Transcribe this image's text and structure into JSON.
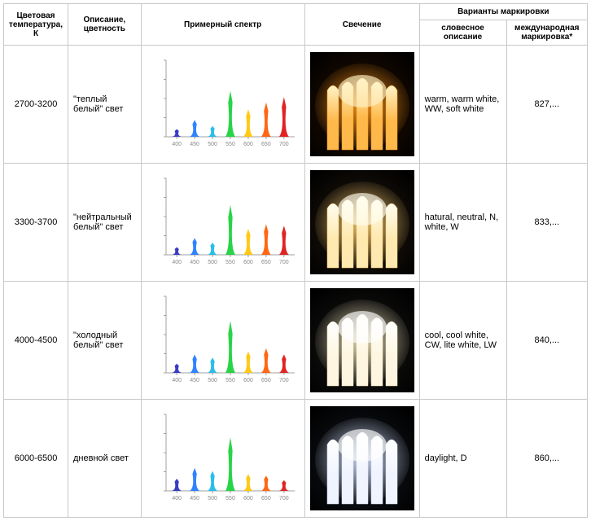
{
  "headers": {
    "col_temp": "Цветовая температура, К",
    "col_desc": "Описание, цветность",
    "col_spectrum": "Примерный спектр",
    "col_glow": "Свечение",
    "col_marking_group": "Варианты маркировки",
    "col_verbal": "словесное описание",
    "col_intl": "международная маркировка*"
  },
  "spectrum_common": {
    "x_ticks": [
      "400",
      "450",
      "500",
      "550",
      "600",
      "650",
      "700"
    ],
    "axis_color": "#a0a0a0",
    "bg": "#ffffff",
    "peak_colors": [
      "#2a2ac0",
      "#1e78ff",
      "#18b8e8",
      "#16d038",
      "#ffc400",
      "#ff5a00",
      "#e01010"
    ]
  },
  "rows": [
    {
      "temp": "2700-3200",
      "desc": "\"теплый белый\" свет",
      "verbal": "warm, warm white, WW, soft white",
      "intl": "827,...",
      "peaks": [
        10,
        22,
        14,
        60,
        36,
        45,
        52
      ],
      "glow": {
        "bg_grad": [
          "#2a1200",
          "#000000"
        ],
        "tube_fill": "#ffb94a",
        "core_fill": "#fff3c8",
        "halo": "#ff9a1a"
      }
    },
    {
      "temp": "3300-3700",
      "desc": "\"нейтральный белый\" свет",
      "verbal": "hatural, neutral, N, white, W",
      "intl": "833,...",
      "peaks": [
        10,
        22,
        16,
        65,
        34,
        40,
        38
      ],
      "glow": {
        "bg_grad": [
          "#241a10",
          "#000000"
        ],
        "tube_fill": "#ffe9b0",
        "core_fill": "#fffdf0",
        "halo": "#ffd070"
      }
    },
    {
      "temp": "4000-4500",
      "desc": "\"холодный белый\" свет",
      "verbal": "cool, cool white, CW, lite white, LW",
      "intl": "840,...",
      "peaks": [
        12,
        24,
        20,
        68,
        28,
        32,
        24
      ],
      "glow": {
        "bg_grad": [
          "#1a1a18",
          "#000000"
        ],
        "tube_fill": "#fef6e0",
        "core_fill": "#ffffff",
        "halo": "#f5e8c0"
      }
    },
    {
      "temp": "6000-6500",
      "desc": "дневной свет",
      "verbal": "daylight, D",
      "intl": "860,...",
      "peaks": [
        16,
        30,
        26,
        70,
        22,
        20,
        14
      ],
      "glow": {
        "bg_grad": [
          "#141820",
          "#000000"
        ],
        "tube_fill": "#f0f4ff",
        "core_fill": "#ffffff",
        "halo": "#d8e4ff"
      }
    }
  ]
}
